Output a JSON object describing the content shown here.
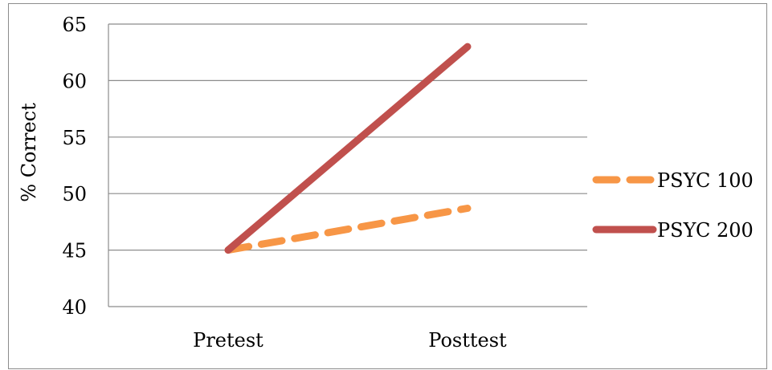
{
  "chart_data": {
    "type": "line",
    "title": "",
    "xlabel": "",
    "ylabel": "% Correct",
    "categories": [
      "Pretest",
      "Posttest"
    ],
    "ylim": [
      40,
      65
    ],
    "yticks": [
      40,
      45,
      50,
      55,
      60,
      65
    ],
    "grid": true,
    "legend_position": "right",
    "series": [
      {
        "name": "PSYC 100",
        "values": [
          45,
          48.7
        ],
        "color": "#f79646",
        "style": "dashed"
      },
      {
        "name": "PSYC 200",
        "values": [
          45,
          63
        ],
        "color": "#c0504d",
        "style": "solid"
      }
    ]
  }
}
